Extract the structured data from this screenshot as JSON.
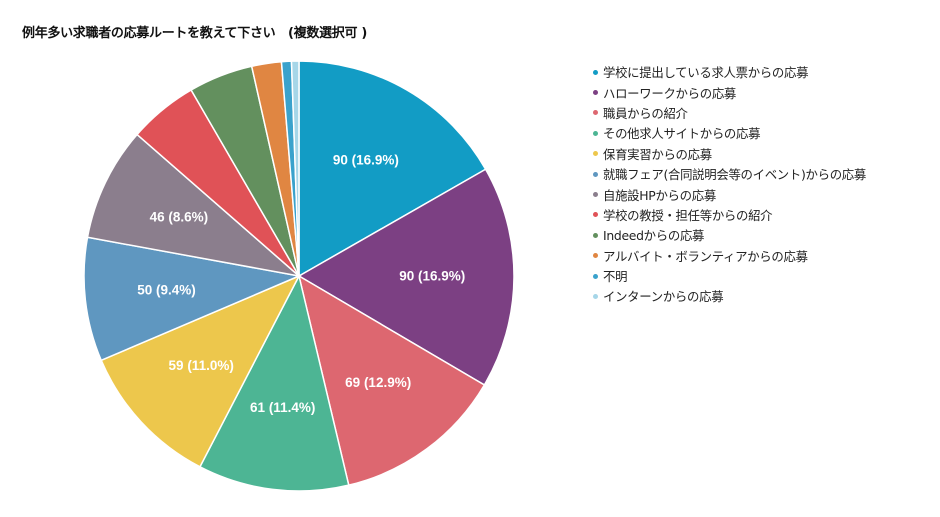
{
  "chart_data": {
    "type": "pie",
    "title": "例年多い求職者の応募ルートを教えて下さい　(複数選択可 )",
    "categories": [
      "学校に提出している求人票からの応募",
      "ハローワークからの応募",
      "職員からの紹介",
      "その他求人サイトからの応募",
      "保育実習からの応募",
      "就職フェア(合同説明会等のイベント)からの応募",
      "自施設HPからの応募",
      "学校の教授・担任等からの紹介",
      "Indeedからの応募",
      "アルバイト・ボランティアからの応募",
      "不明",
      "インターンからの応募"
    ],
    "values": [
      90,
      90,
      69,
      61,
      59,
      50,
      46,
      28,
      26,
      12,
      4,
      3
    ],
    "data_labels": [
      "90 (16.9%)",
      "90 (16.9%)",
      "69 (12.9%)",
      "61 (11.4%)",
      "59 (11.0%)",
      "50 (9.4%)",
      "46 (8.6%)",
      "",
      "",
      "",
      "",
      ""
    ],
    "colors": [
      "#129cc5",
      "#7c4083",
      "#dd6770",
      "#4db594",
      "#edc74c",
      "#5f97c0",
      "#8b7e8d",
      "#e05257",
      "#63905e",
      "#e08642",
      "#3aa2cc",
      "#a6d6e8"
    ],
    "start_angle_deg": 0,
    "direction": "clockwise",
    "legend_position": "right"
  }
}
